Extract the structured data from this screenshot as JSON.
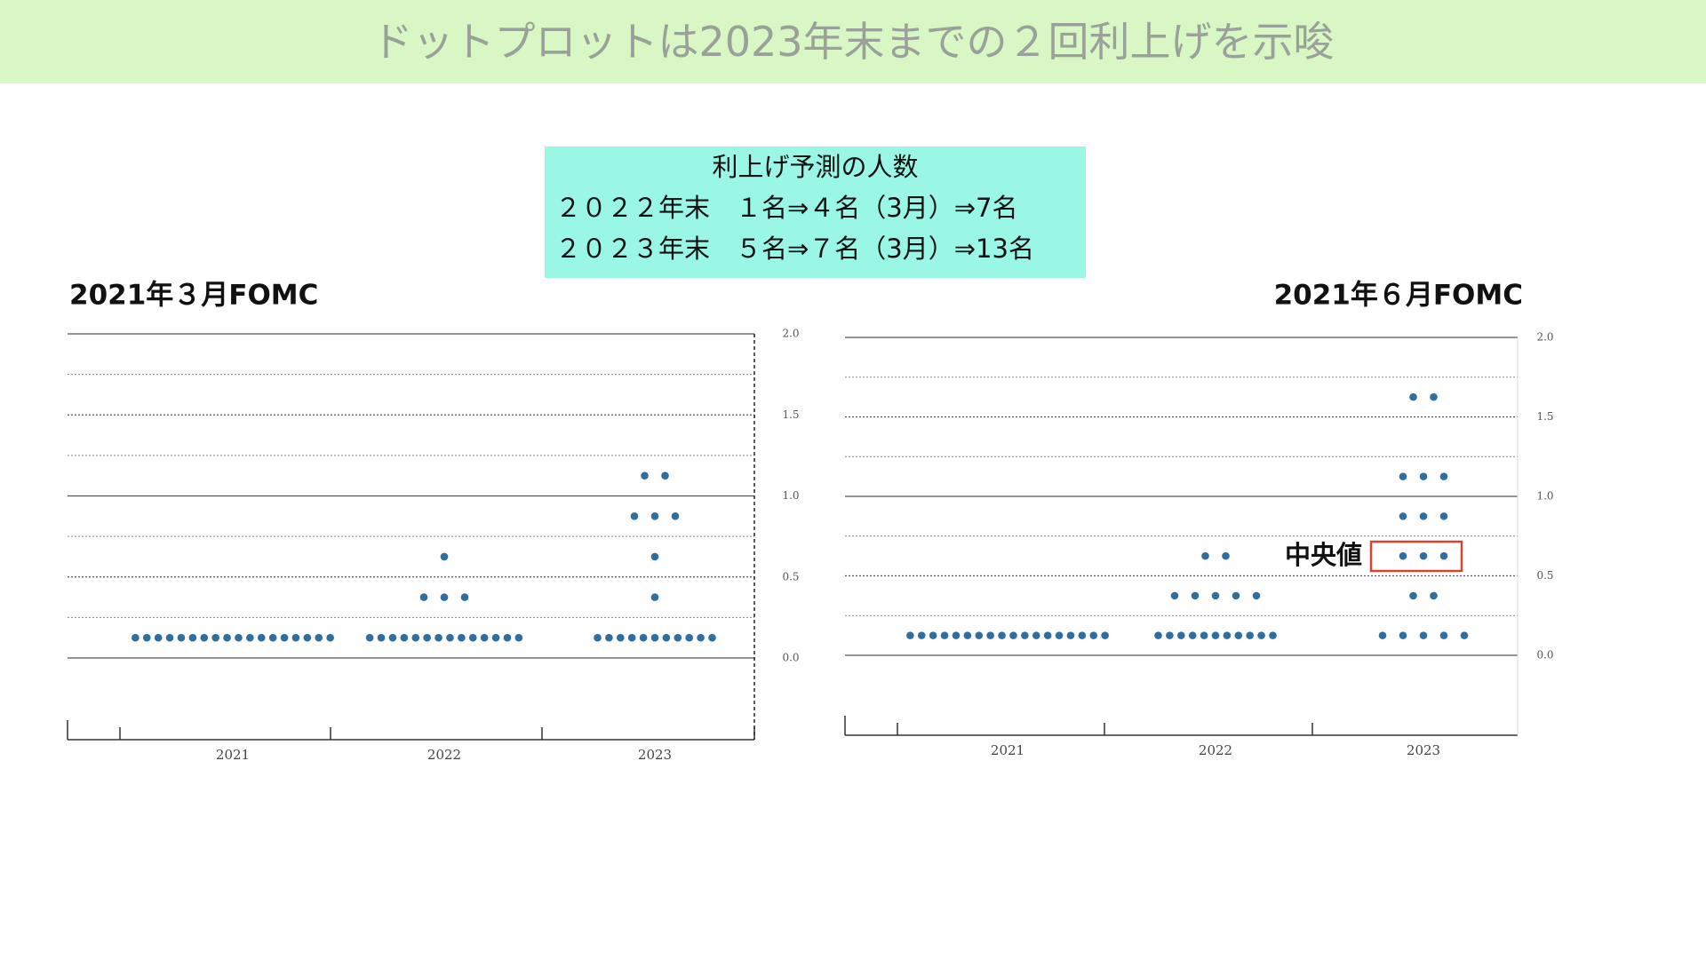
{
  "header": {
    "title": "ドットプロットは2023年末までの２回利上げを示唆"
  },
  "info_box": {
    "lines": [
      "利上げ予測の人数",
      "２０２２年末　１名⇒４名（3月）⇒7名",
      "２０２３年末　５名⇒７名（3月）⇒13名"
    ]
  },
  "chart_data": [
    {
      "type": "dotplot",
      "title": "2021年３月FOMC",
      "color": "#2f6e9e",
      "categories": [
        "2021",
        "2022",
        "2023"
      ],
      "values": [
        [
          0.125,
          0.125,
          0.125,
          0.125,
          0.125,
          0.125,
          0.125,
          0.125,
          0.125,
          0.125,
          0.125,
          0.125,
          0.125,
          0.125,
          0.125,
          0.125,
          0.125,
          0.125
        ],
        [
          0.125,
          0.125,
          0.125,
          0.125,
          0.125,
          0.125,
          0.125,
          0.125,
          0.125,
          0.125,
          0.125,
          0.125,
          0.125,
          0.125,
          0.375,
          0.375,
          0.375,
          0.625
        ],
        [
          0.125,
          0.125,
          0.125,
          0.125,
          0.125,
          0.125,
          0.125,
          0.125,
          0.125,
          0.125,
          0.125,
          0.375,
          0.625,
          0.875,
          0.875,
          0.875,
          1.125,
          1.125
        ]
      ],
      "ylim": [
        -0.5,
        2.0
      ],
      "yticks": [
        {
          "value": 0,
          "label": "0.0"
        },
        {
          "value": 0.5,
          "label": "0.5"
        },
        {
          "value": 1,
          "label": "1.0"
        },
        {
          "value": 1.5,
          "label": "1.5"
        },
        {
          "value": 2,
          "label": "2.0"
        }
      ],
      "minor_yticks": [
        0.25,
        0.75,
        1.25,
        1.75
      ],
      "grid": true
    },
    {
      "type": "dotplot",
      "title": "2021年６月FOMC",
      "color": "#2f6e9e",
      "categories": [
        "2021",
        "2022",
        "2023"
      ],
      "values": [
        [
          0.125,
          0.125,
          0.125,
          0.125,
          0.125,
          0.125,
          0.125,
          0.125,
          0.125,
          0.125,
          0.125,
          0.125,
          0.125,
          0.125,
          0.125,
          0.125,
          0.125,
          0.125
        ],
        [
          0.125,
          0.125,
          0.125,
          0.125,
          0.125,
          0.125,
          0.125,
          0.125,
          0.125,
          0.125,
          0.125,
          0.375,
          0.375,
          0.375,
          0.375,
          0.375,
          0.625,
          0.625
        ],
        [
          0.125,
          0.125,
          0.125,
          0.125,
          0.125,
          0.375,
          0.375,
          0.625,
          0.625,
          0.625,
          0.875,
          0.875,
          0.875,
          1.125,
          1.125,
          1.125,
          1.625,
          1.625
        ]
      ],
      "ylim": [
        -0.5,
        2.0
      ],
      "yticks": [
        {
          "value": 0,
          "label": "0.0"
        },
        {
          "value": 0.5,
          "label": "0.5"
        },
        {
          "value": 1,
          "label": "1.0"
        },
        {
          "value": 1.5,
          "label": "1.5"
        },
        {
          "value": 2,
          "label": "2.0"
        }
      ],
      "minor_yticks": [
        0.25,
        0.75,
        1.25,
        1.75
      ],
      "grid": true,
      "annotation": "中央値"
    }
  ]
}
